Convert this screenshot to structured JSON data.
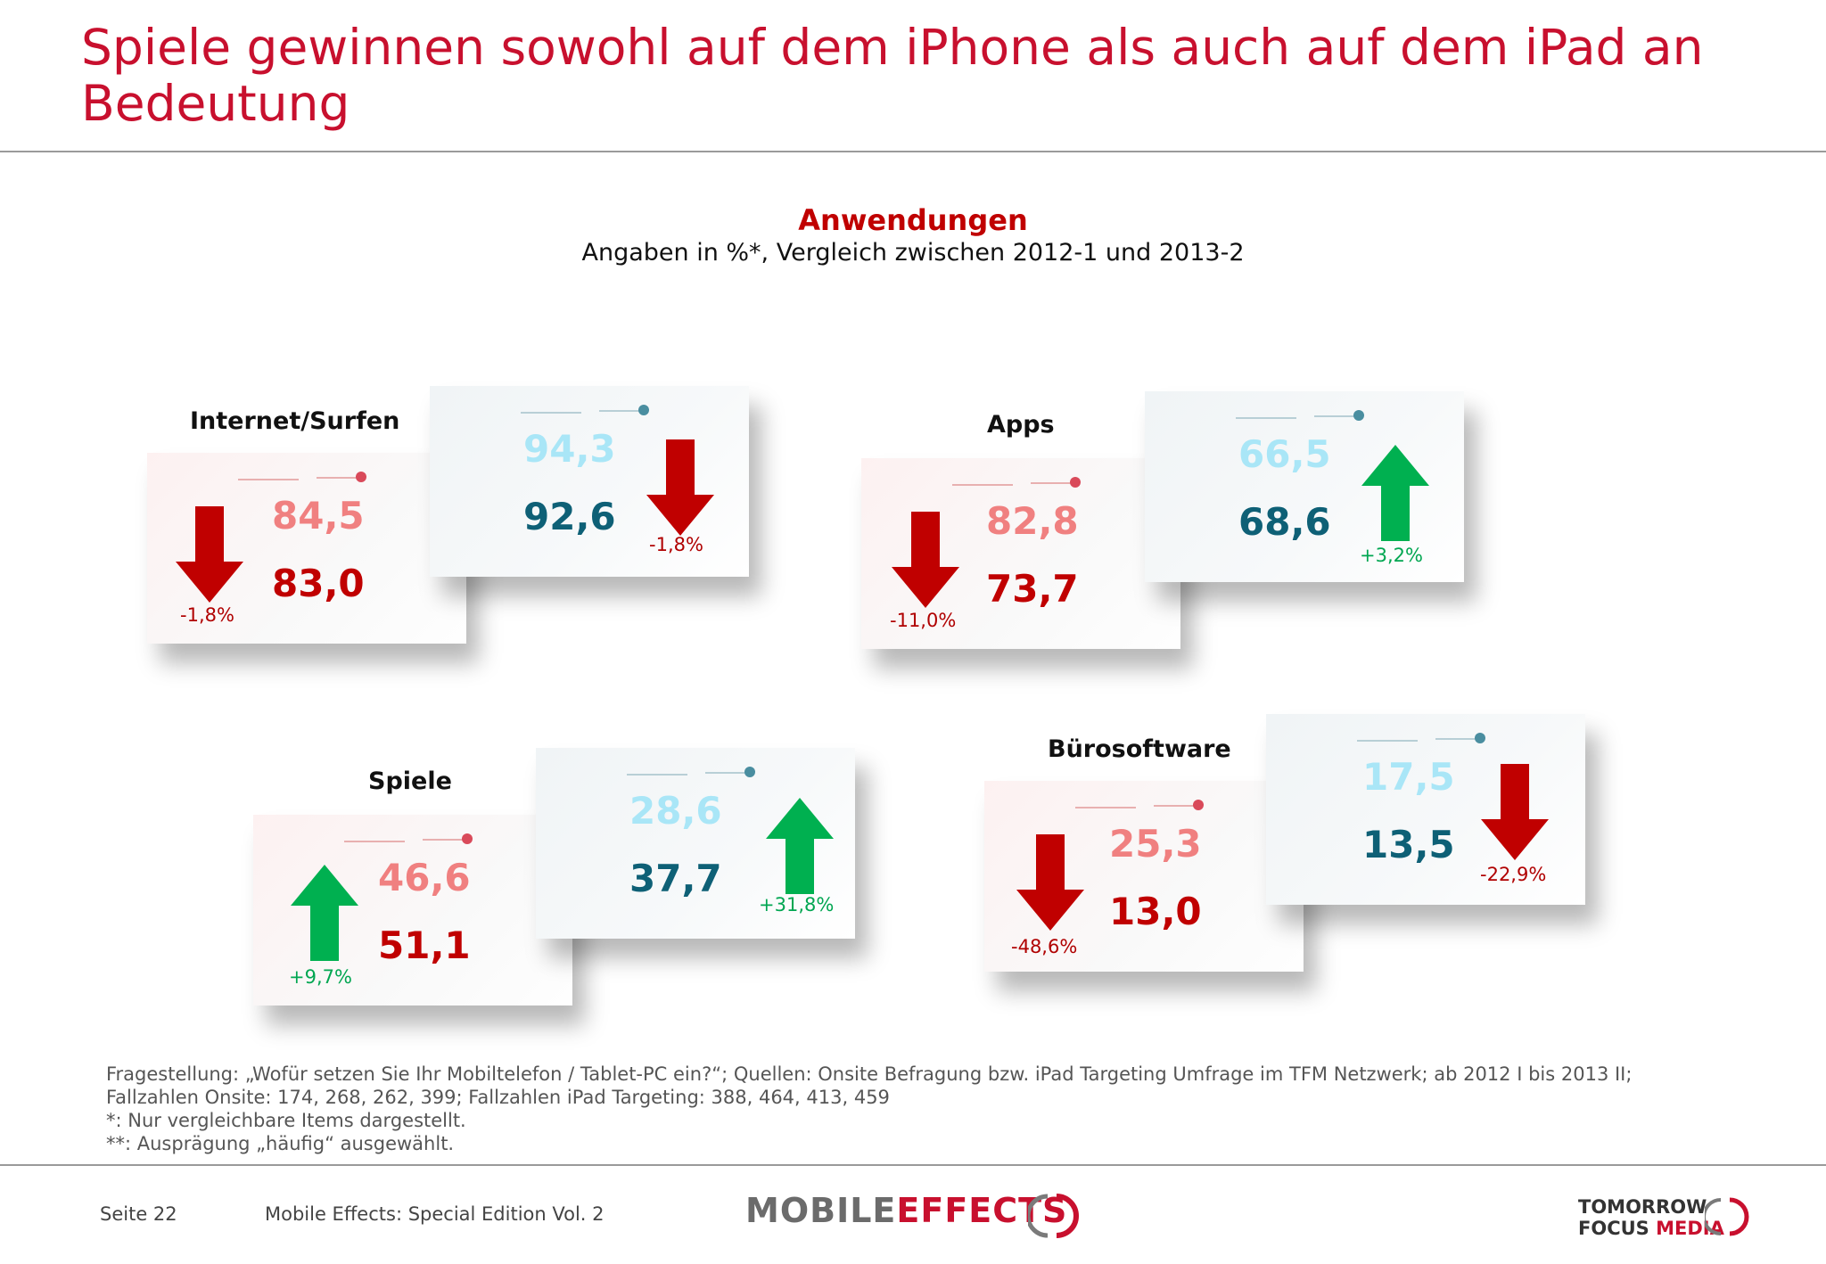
{
  "header": {
    "title": "Spiele gewinnen sowohl auf dem iPhone als auch auf dem iPad an Bedeutung"
  },
  "chart": {
    "title": "Anwendungen",
    "subtitle": "Angaben in %*, Vergleich zwischen 2012-1 und 2013-2"
  },
  "colors": {
    "title_red": "#c8102e",
    "phone_old": "#f08080",
    "phone_new": "#c00000",
    "tablet_old": "#a9e6f7",
    "tablet_new": "#0e6076",
    "arrow_up": "#00b050",
    "arrow_down": "#c00000"
  },
  "groups": [
    {
      "label": "Internet/Surfen",
      "phone": {
        "old": "84,5",
        "new": "83,0",
        "change": "-1,8%",
        "direction": "down"
      },
      "tablet": {
        "old": "94,3",
        "new": "92,6",
        "change": "-1,8%",
        "direction": "down"
      }
    },
    {
      "label": "Apps",
      "phone": {
        "old": "82,8",
        "new": "73,7",
        "change": "-11,0%",
        "direction": "down"
      },
      "tablet": {
        "old": "66,5",
        "new": "68,6",
        "change": "+3,2%",
        "direction": "up"
      }
    },
    {
      "label": "Spiele",
      "phone": {
        "old": "46,6",
        "new": "51,1",
        "change": "+9,7%",
        "direction": "up"
      },
      "tablet": {
        "old": "28,6",
        "new": "37,7",
        "change": "+31,8%",
        "direction": "up"
      }
    },
    {
      "label": "Bürosoftware",
      "phone": {
        "old": "25,3",
        "new": "13,0",
        "change": "-48,6%",
        "direction": "down"
      },
      "tablet": {
        "old": "17,5",
        "new": "13,5",
        "change": "-22,9%",
        "direction": "down"
      }
    }
  ],
  "footnotes": {
    "line1": "Fragestellung: „Wofür setzen Sie Ihr Mobiltelefon / Tablet-PC ein?“; Quellen: Onsite Befragung bzw. iPad Targeting Umfrage im TFM Netzwerk; ab 2012 I bis 2013 II;",
    "line2": "Fallzahlen Onsite: 174, 268, 262, 399; Fallzahlen iPad Targeting: 388, 464, 413, 459",
    "line3": "*: Nur vergleichbare Items dargestellt.",
    "line4": "**: Ausprägung „häufig“ ausgewählt."
  },
  "footer": {
    "page": "Seite 22",
    "publication": "Mobile Effects: Special Edition Vol. 2",
    "logo_left_a": "MOBILE",
    "logo_left_b": "EFFECTS",
    "logo_right_line1": "TOMORROW",
    "logo_right_line2a": "FOCUS",
    "logo_right_line2b": "MEDIA"
  }
}
